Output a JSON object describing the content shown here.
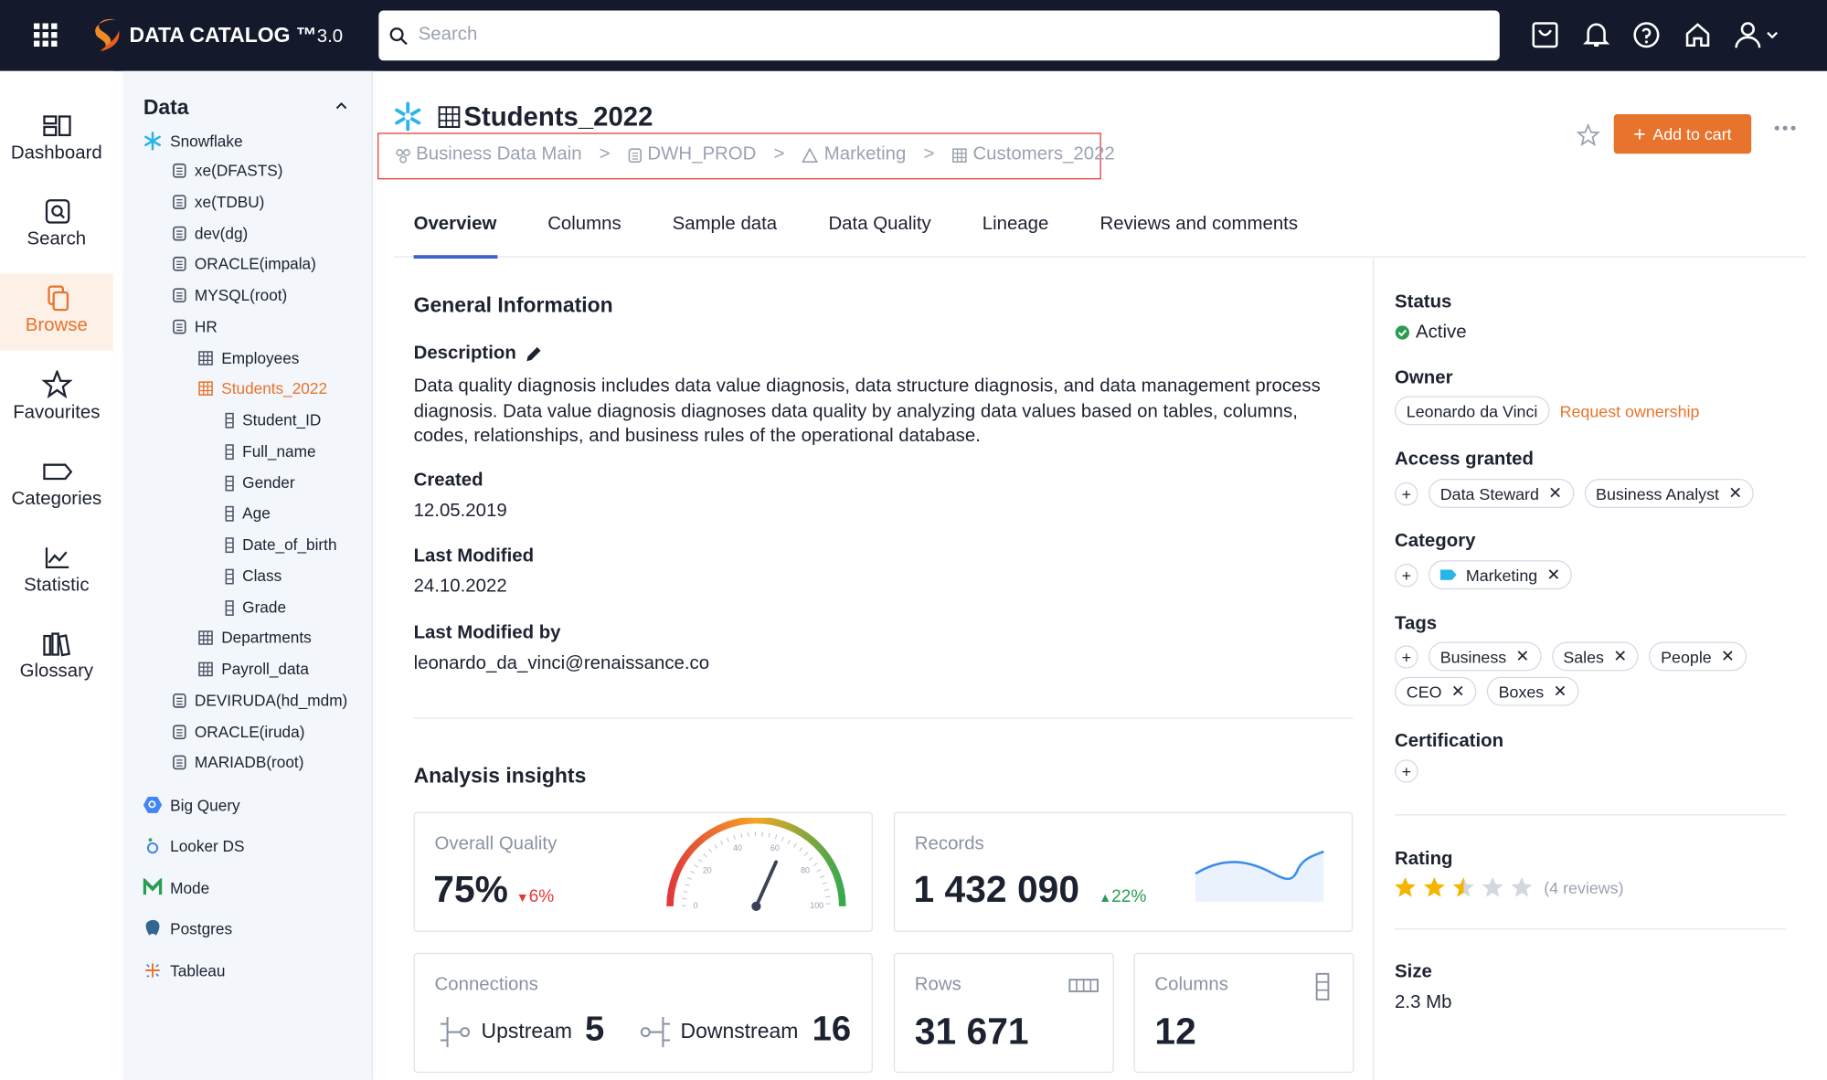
{
  "header": {
    "brand": "DATA CATALOG ™",
    "version": "3.0",
    "search_placeholder": "Search"
  },
  "nav": [
    "Dashboard",
    "Search",
    "Browse",
    "Favourites",
    "Categories",
    "Statistic",
    "Glossary"
  ],
  "tree": {
    "title": "Data",
    "items": [
      "Snowflake",
      "xe(DFASTS)",
      "xe(TDBU)",
      "dev(dg)",
      "ORACLE(impala)",
      "MYSQL(root)",
      "HR",
      "Employees",
      "Students_2022",
      "Student_ID",
      "Full_name",
      "Gender",
      "Age",
      "Date_of_birth",
      "Class",
      "Grade",
      "Departments",
      "Payroll_data",
      "DEVIRUDA(hd_mdm)",
      "ORACLE(iruda)",
      "MARIADB(root)",
      "Big Query",
      "Looker DS",
      "Mode",
      "Postgres",
      "Tableau"
    ]
  },
  "page": {
    "title": "Students_2022",
    "breadcrumb": [
      "Business Data Main",
      "DWH_PROD",
      "Marketing",
      "Customers_2022"
    ],
    "separator": ">",
    "add_to_cart": "Add to cart"
  },
  "tabs": [
    "Overview",
    "Columns",
    "Sample data",
    "Data Quality",
    "Lineage",
    "Reviews and comments"
  ],
  "general": {
    "title": "General Information",
    "description_label": "Description",
    "description": "Data quality diagnosis includes data value diagnosis, data structure diagnosis, and data management process diagnosis. Data value diagnosis diagnoses data quality by analyzing data values based on tables, columns, codes, relationships, and business rules of the operational database.",
    "created_label": "Created",
    "created": "12.05.2019",
    "modified_label": "Last Modified",
    "modified": "24.10.2022",
    "modified_by_label": "Last Modified by",
    "modified_by": "leonardo_da_vinci@renaissance.co"
  },
  "insights": {
    "title": "Analysis insights",
    "quality": {
      "label": "Overall Quality",
      "value": "75%",
      "change": "6%",
      "gauge_labels": [
        0,
        20,
        40,
        60,
        80,
        100
      ]
    },
    "records": {
      "label": "Records",
      "value": "1 432 090",
      "change": "22%"
    },
    "connections": {
      "label": "Connections",
      "upstream_label": "Upstream",
      "upstream": 5,
      "downstream_label": "Downstream",
      "downstream": 16
    },
    "rows": {
      "label": "Rows",
      "value": "31 671"
    },
    "columns": {
      "label": "Columns",
      "value": 12
    }
  },
  "sidebar": {
    "status": {
      "label": "Status",
      "value": "Active"
    },
    "owner": {
      "label": "Owner",
      "name": "Leonardo da Vinci",
      "action": "Request ownership"
    },
    "access": {
      "label": "Access granted",
      "items": [
        "Data Steward",
        "Business Analyst"
      ]
    },
    "category": {
      "label": "Category",
      "items": [
        "Marketing"
      ]
    },
    "tags": {
      "label": "Tags",
      "items": [
        "Business",
        "Sales",
        "People",
        "CEO",
        "Boxes"
      ]
    },
    "certification": {
      "label": "Certification"
    },
    "rating": {
      "label": "Rating",
      "reviews": "(4 reviews)"
    },
    "size": {
      "label": "Size",
      "value": "2.3 Mb"
    }
  }
}
